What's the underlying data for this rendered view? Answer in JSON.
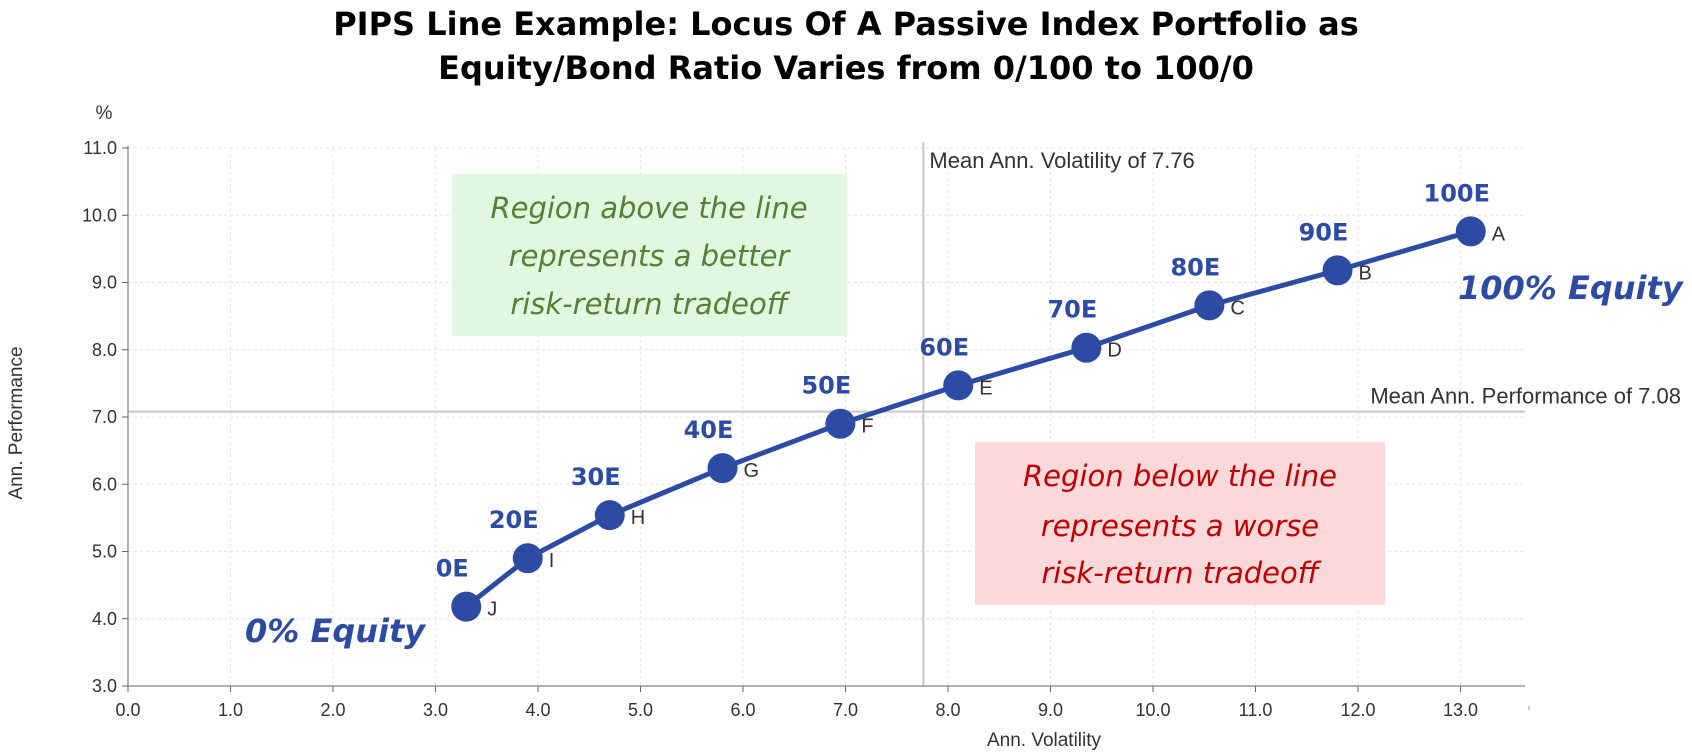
{
  "title_line1": "PIPS Line Example: Locus Of A Passive Index Portfolio as",
  "title_line2": "Equity/Bond Ratio Varies from 0/100 to 100/0",
  "chart_data": {
    "type": "line",
    "title": "PIPS Line Example: Locus Of A Passive Index Portfolio as Equity/Bond Ratio Varies from 0/100 to 100/0",
    "xlabel": "Ann. Volatility",
    "ylabel": "Ann. Performance",
    "y_unit": "%",
    "xlim": [
      0,
      13.0
    ],
    "ylim": [
      3.0,
      11.0
    ],
    "x_ticks": [
      "0.0",
      "1.0",
      "2.0",
      "3.0",
      "4.0",
      "5.0",
      "6.0",
      "7.0",
      "8.0",
      "9.0",
      "10.0",
      "11.0",
      "12.0",
      "13.0"
    ],
    "y_ticks": [
      "3.0",
      "4.0",
      "5.0",
      "6.0",
      "7.0",
      "8.0",
      "9.0",
      "10.0",
      "11.0"
    ],
    "grid": true,
    "color": "#2e4ba4",
    "points": [
      {
        "label": "0E",
        "letter": "J",
        "x": 3.3,
        "y": 4.18
      },
      {
        "label": "20E",
        "letter": "I",
        "x": 3.9,
        "y": 4.9
      },
      {
        "label": "30E",
        "letter": "H",
        "x": 4.7,
        "y": 5.54
      },
      {
        "label": "40E",
        "letter": "G",
        "x": 5.8,
        "y": 6.24
      },
      {
        "label": "50E",
        "letter": "F",
        "x": 6.95,
        "y": 6.9
      },
      {
        "label": "60E",
        "letter": "E",
        "x": 8.1,
        "y": 7.47
      },
      {
        "label": "70E",
        "letter": "D",
        "x": 9.35,
        "y": 8.03
      },
      {
        "label": "80E",
        "letter": "C",
        "x": 10.55,
        "y": 8.66
      },
      {
        "label": "90E",
        "letter": "B",
        "x": 11.8,
        "y": 9.18
      },
      {
        "label": "100E",
        "letter": "A",
        "x": 13.1,
        "y": 9.76
      }
    ],
    "reference_lines": {
      "vertical": {
        "value": 7.76,
        "label": "Mean Ann. Volatility of 7.76"
      },
      "horizontal": {
        "value": 7.08,
        "label": "Mean Ann. Performance of 7.08"
      }
    },
    "annotations": {
      "start": "0% Equity",
      "end": "100% Equity",
      "above_box": [
        "Region above the line",
        "represents a better",
        "risk-return tradeoff"
      ],
      "below_box": [
        "Region below the line",
        "represents a worse",
        "risk-return tradeoff"
      ]
    },
    "colors": {
      "series": "#2e4ba4",
      "above_box_fill": "#e2f7df",
      "above_box_text": "#538135",
      "below_box_fill": "#fbd9da",
      "below_box_text": "#c00000"
    }
  }
}
